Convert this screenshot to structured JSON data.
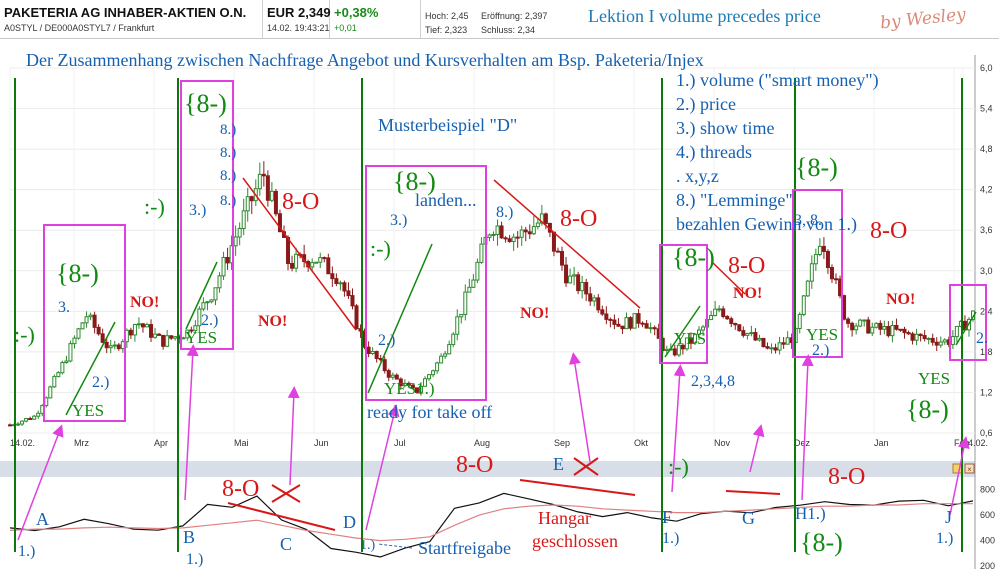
{
  "header": {
    "title": "PAKETERIA AG INHABER-AKTIEN O.N.",
    "ids": "A0STYL / DE000A0STYL7 / Frankfurt",
    "price": "EUR 2,349",
    "datetime": "14.02. 19:43:21",
    "change_pct": "+0,38%",
    "change_abs": "+0,01",
    "high": "Hoch: 2,45",
    "open": "Eröffnung: 2,397",
    "low": "Tief: 2,323",
    "close": "Schluss: 2,34",
    "lesson": "Lektion I volume precedes price",
    "author": "by Wesley",
    "colors": {
      "positive": "#1a8a1a",
      "lesson": "#1a7ab5",
      "author": "#d98a7a"
    }
  },
  "annotations": {
    "headline": "Der Zusammenhang zwischen Nachfrage Angebot und Kursverhalten am Bsp. Paketeria/Injex",
    "list": [
      "1.) volume (\"smart money\")",
      "2.) price",
      "3.) show time",
      "4.) threads",
      ". x,y,z",
      "8.) \"Lemminge\"",
      "bezahlen Gewinn von 1.)"
    ],
    "muster": "Musterbeispiel \"D\"",
    "landen": "landen...",
    "ready": "ready for take off",
    "startfreigabe": "Startfreigabe",
    "hangar": [
      "Hangar",
      "geschlossen"
    ],
    "happy": ":-)",
    "grin": "{8-)",
    "shock": "8-O",
    "no": "NO!",
    "yes": "YES",
    "n1": "1.)",
    "n2": "2.)",
    "n3": "3.)",
    "n8": "8.)",
    "n3_8": "3, 8.",
    "n2348": "2,3,4,8",
    "n2short": "2.",
    "n3short": "3.",
    "yes1": "YES1.)",
    "h1": "H1.)",
    "vol_letters": [
      "A",
      "B",
      "C",
      "D",
      "E",
      "F",
      "G",
      "J"
    ],
    "colors": {
      "blue": "#1560b0",
      "green": "#108a10",
      "red": "#d81818",
      "magenta": "#e040e0",
      "vline": "#0b7a0b"
    }
  },
  "chart_data": [
    {
      "type": "candlestick",
      "title": "",
      "x_tick_labels": [
        "14.02.",
        "Mrz",
        "Apr",
        "Mai",
        "Jun",
        "Jul",
        "Aug",
        "Sep",
        "Okt",
        "Nov",
        "Dez",
        "Jan",
        "Feb",
        "14.02."
      ],
      "y_tick_labels": [
        "0,6",
        "1,2",
        "1,8",
        "2,4",
        "3,0",
        "3,6",
        "4,2",
        "4,8",
        "5,4",
        "6,0"
      ],
      "ylim": [
        0.6,
        6.0
      ],
      "close_series": [
        {
          "x": "14.02.",
          "y": 0.72
        },
        {
          "x": "01.03.",
          "y": 0.85
        },
        {
          "x": "08.03.",
          "y": 1.55
        },
        {
          "x": "15.03.",
          "y": 2.35
        },
        {
          "x": "22.03.",
          "y": 1.8
        },
        {
          "x": "31.03.",
          "y": 2.25
        },
        {
          "x": "10.04.",
          "y": 1.95
        },
        {
          "x": "20.04.",
          "y": 2.1
        },
        {
          "x": "25.04.",
          "y": 2.7
        },
        {
          "x": "30.04.",
          "y": 3.6
        },
        {
          "x": "03.05.",
          "y": 4.45
        },
        {
          "x": "10.05.",
          "y": 3.1
        },
        {
          "x": "20.05.",
          "y": 3.2
        },
        {
          "x": "01.06.",
          "y": 2.9
        },
        {
          "x": "10.06.",
          "y": 1.9
        },
        {
          "x": "20.06.",
          "y": 1.45
        },
        {
          "x": "30.06.",
          "y": 1.2
        },
        {
          "x": "05.07.",
          "y": 1.7
        },
        {
          "x": "12.07.",
          "y": 2.6
        },
        {
          "x": "20.07.",
          "y": 3.7
        },
        {
          "x": "01.08.",
          "y": 3.5
        },
        {
          "x": "10.08.",
          "y": 3.75
        },
        {
          "x": "20.08.",
          "y": 2.9
        },
        {
          "x": "01.09.",
          "y": 2.6
        },
        {
          "x": "10.09.",
          "y": 2.2
        },
        {
          "x": "25.09.",
          "y": 2.3
        },
        {
          "x": "05.10.",
          "y": 1.75
        },
        {
          "x": "15.10.",
          "y": 2.0
        },
        {
          "x": "25.10.",
          "y": 2.45
        },
        {
          "x": "05.11.",
          "y": 2.1
        },
        {
          "x": "15.11.",
          "y": 1.8
        },
        {
          "x": "25.11.",
          "y": 2.05
        },
        {
          "x": "01.12.",
          "y": 3.55
        },
        {
          "x": "10.12.",
          "y": 2.25
        },
        {
          "x": "25.12.",
          "y": 2.15
        },
        {
          "x": "10.01.",
          "y": 2.1
        },
        {
          "x": "25.01.",
          "y": 2.0
        },
        {
          "x": "05.02.",
          "y": 1.95
        },
        {
          "x": "14.02.",
          "y": 2.35
        }
      ]
    },
    {
      "type": "line",
      "title": "",
      "y_tick_labels": [
        "200",
        "400",
        "600",
        "800"
      ],
      "ylim": [
        200,
        900
      ],
      "series": [
        {
          "values": [
            500,
            470,
            520,
            560,
            530,
            500,
            470,
            520,
            690,
            650,
            760,
            560,
            480,
            350,
            300,
            270,
            350,
            380,
            660,
            700,
            760,
            740,
            680,
            620,
            600,
            610,
            580,
            560,
            600,
            640,
            620,
            650,
            690,
            700,
            680,
            690,
            700,
            720,
            680,
            700
          ]
        },
        {
          "values": [
            480,
            490,
            490,
            500,
            505,
            500,
            495,
            500,
            520,
            540,
            560,
            520,
            480,
            450,
            420,
            400,
            410,
            430,
            520,
            600,
            650,
            670,
            680,
            670,
            650,
            640,
            630,
            620,
            620,
            630,
            640,
            650,
            660,
            670,
            670,
            680,
            680,
            690,
            690,
            690
          ]
        }
      ]
    }
  ]
}
